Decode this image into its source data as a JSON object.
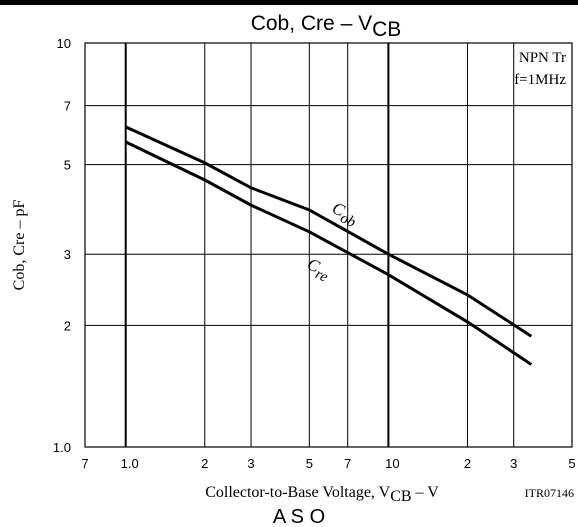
{
  "chart_data": {
    "type": "line",
    "title": {
      "main": "Cob, Cre  –  V",
      "sub": "CB"
    },
    "x_label": {
      "main": "Collector-to-Base Voltage, V",
      "sub": "CB",
      "tail": "  –  V"
    },
    "y_label": "Cob, Cre  –  pF",
    "annotations": [
      "NPN Tr",
      "f=1MHz"
    ],
    "code": "ITR07146",
    "footer": "A S O",
    "x_scale": "log",
    "y_scale": "log",
    "grid": true,
    "xlim": [
      0.7,
      50
    ],
    "ylim": [
      1,
      10
    ],
    "xticks": [
      {
        "value": 0.7,
        "label": "7"
      },
      {
        "value": 1,
        "label": "1.0"
      },
      2,
      3,
      5,
      7,
      10,
      {
        "value": 20,
        "label": "2"
      },
      {
        "value": 30,
        "label": "3"
      },
      {
        "value": 50,
        "label": "5"
      }
    ],
    "yticks": [
      {
        "value": 1,
        "label": "1.0"
      },
      2,
      3,
      5,
      7,
      10
    ],
    "series": [
      {
        "name": {
          "main": "C",
          "sub": "ob"
        },
        "color": "#000000",
        "x": [
          1,
          2,
          3,
          5,
          10,
          20,
          35
        ],
        "values": [
          6.2,
          5.05,
          4.38,
          3.86,
          3.0,
          2.38,
          1.88
        ]
      },
      {
        "name": {
          "main": "C",
          "sub": "re"
        },
        "color": "#000000",
        "x": [
          1,
          2,
          3,
          5,
          10,
          20,
          35
        ],
        "values": [
          5.69,
          4.58,
          3.97,
          3.41,
          2.67,
          2.04,
          1.6
        ]
      }
    ]
  }
}
